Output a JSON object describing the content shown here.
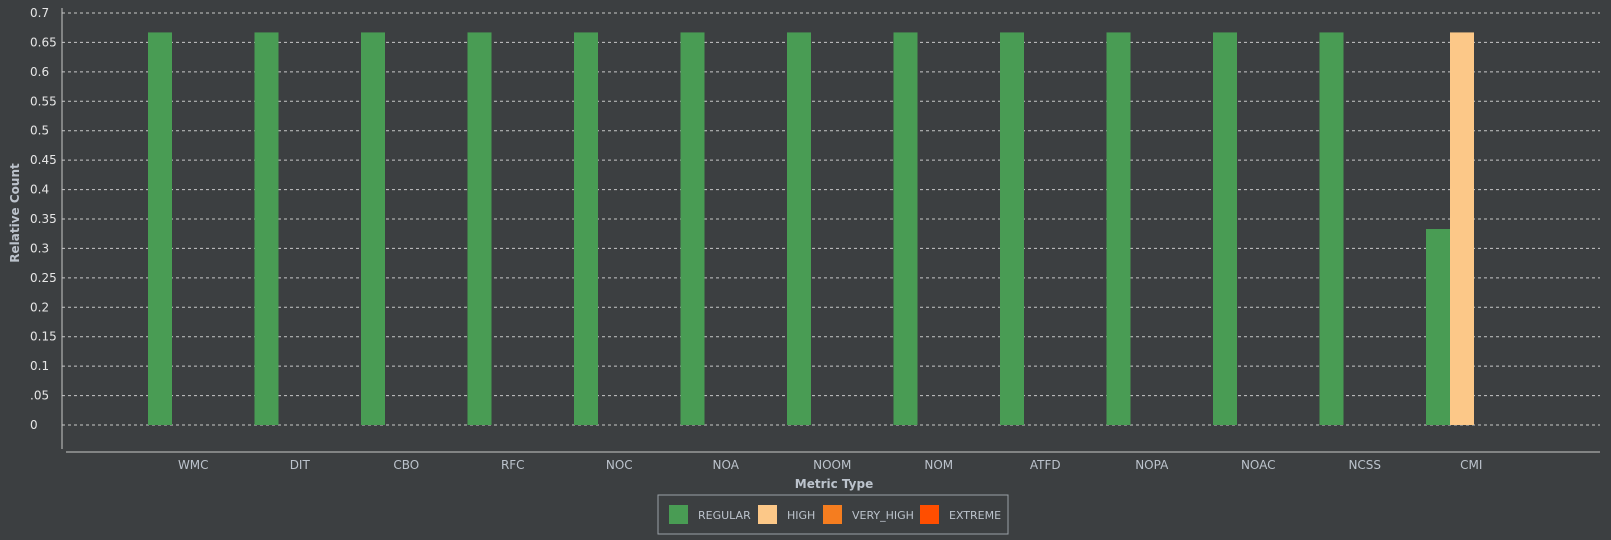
{
  "chart_data": {
    "type": "bar",
    "xlabel": "Metric Type",
    "ylabel": "Relative Count",
    "ylim": [
      0,
      0.7
    ],
    "grid": true,
    "legend_position": "bottom-center",
    "y_ticks": [
      {
        "value": 0,
        "label": "0"
      },
      {
        "value": 0.05,
        "label": ".05"
      },
      {
        "value": 0.1,
        "label": "0.1"
      },
      {
        "value": 0.15,
        "label": "0.15"
      },
      {
        "value": 0.2,
        "label": "0.2"
      },
      {
        "value": 0.25,
        "label": "0.25"
      },
      {
        "value": 0.3,
        "label": "0.3"
      },
      {
        "value": 0.35,
        "label": "0.35"
      },
      {
        "value": 0.4,
        "label": "0.4"
      },
      {
        "value": 0.45,
        "label": "0.45"
      },
      {
        "value": 0.5,
        "label": "0.5"
      },
      {
        "value": 0.55,
        "label": "0.55"
      },
      {
        "value": 0.6,
        "label": "0.6"
      },
      {
        "value": 0.65,
        "label": "0.65"
      },
      {
        "value": 0.7,
        "label": "0.7"
      }
    ],
    "categories": [
      "WMC",
      "DIT",
      "CBO",
      "RFC",
      "NOC",
      "NOA",
      "NOOM",
      "NOM",
      "ATFD",
      "NOPA",
      "NOAC",
      "NCSS",
      "CMI"
    ],
    "series": [
      {
        "name": "REGULAR",
        "color": "#499c54",
        "values": [
          0.667,
          0.667,
          0.667,
          0.667,
          0.667,
          0.667,
          0.667,
          0.667,
          0.667,
          0.667,
          0.667,
          0.667,
          0.333
        ]
      },
      {
        "name": "HIGH",
        "color": "#fcc888",
        "values": [
          0,
          0,
          0,
          0,
          0,
          0,
          0,
          0,
          0,
          0,
          0,
          0,
          0.667
        ]
      },
      {
        "name": "VERY_HIGH",
        "color": "#f57d1f",
        "values": [
          0,
          0,
          0,
          0,
          0,
          0,
          0,
          0,
          0,
          0,
          0,
          0,
          0
        ]
      },
      {
        "name": "EXTREME",
        "color": "#ff4e00",
        "values": [
          0,
          0,
          0,
          0,
          0,
          0,
          0,
          0,
          0,
          0,
          0,
          0,
          0
        ]
      }
    ]
  }
}
